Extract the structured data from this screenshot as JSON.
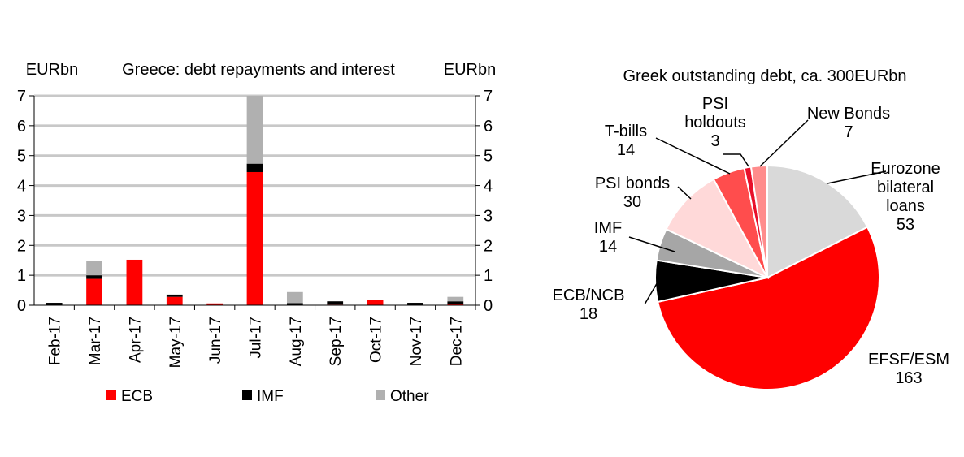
{
  "chart_data": [
    {
      "type": "bar",
      "stacked": true,
      "title": "Greece: debt repayments and interest",
      "ylabel_left": "EURbn",
      "ylabel_right": "EURbn",
      "ylim": [
        0,
        7
      ],
      "yticks": [
        "0",
        "1",
        "2",
        "3",
        "4",
        "5",
        "6",
        "7"
      ],
      "grid": true,
      "legend_position": "bottom",
      "categories": [
        "Feb-17",
        "Mar-17",
        "Apr-17",
        "May-17",
        "Jun-17",
        "Jul-17",
        "Aug-17",
        "Sep-17",
        "Oct-17",
        "Nov-17",
        "Dec-17"
      ],
      "series": [
        {
          "name": "ECB",
          "color": "#ff0000",
          "values": [
            0.0,
            0.88,
            1.52,
            0.28,
            0.06,
            4.45,
            0.0,
            0.02,
            0.18,
            0.0,
            0.05
          ]
        },
        {
          "name": "IMF",
          "color": "#000000",
          "values": [
            0.08,
            0.12,
            0.0,
            0.06,
            0.0,
            0.28,
            0.07,
            0.11,
            0.0,
            0.08,
            0.08
          ]
        },
        {
          "name": "Other",
          "color": "#b0b0b0",
          "values": [
            0.0,
            0.48,
            0.0,
            0.02,
            0.0,
            2.27,
            0.37,
            0.0,
            0.0,
            0.0,
            0.15
          ]
        }
      ]
    },
    {
      "type": "pie",
      "title": "Greek outstanding debt, ca. 300EURbn",
      "slices": [
        {
          "label": "Eurozone bilateral loans",
          "lines": [
            "Eurozone",
            "bilateral",
            "loans"
          ],
          "value_label": "53",
          "value": 53,
          "color": "#d9d9d9"
        },
        {
          "label": "EFSF/ESM",
          "lines": [
            "EFSF/ESM"
          ],
          "value_label": "163",
          "value": 163,
          "color": "#ff0000"
        },
        {
          "label": "ECB/NCB",
          "lines": [
            "ECB/NCB"
          ],
          "value_label": "18",
          "value": 18,
          "color": "#000000"
        },
        {
          "label": "IMF",
          "lines": [
            "IMF"
          ],
          "value_label": "14",
          "value": 14,
          "color": "#a6a6a6"
        },
        {
          "label": "PSI bonds",
          "lines": [
            "PSI bonds"
          ],
          "value_label": "30",
          "value": 30,
          "color": "#ffd9d9"
        },
        {
          "label": "T-bills",
          "lines": [
            "T-bills"
          ],
          "value_label": "14",
          "value": 14,
          "color": "#ff4d4d"
        },
        {
          "label": "PSI holdouts",
          "lines": [
            "PSI",
            "holdouts"
          ],
          "value_label": "3",
          "value": 3,
          "color": "#e8102a"
        },
        {
          "label": "New Bonds",
          "lines": [
            "New Bonds"
          ],
          "value_label": "7",
          "value": 7,
          "color": "#ff8c8c"
        }
      ]
    }
  ]
}
